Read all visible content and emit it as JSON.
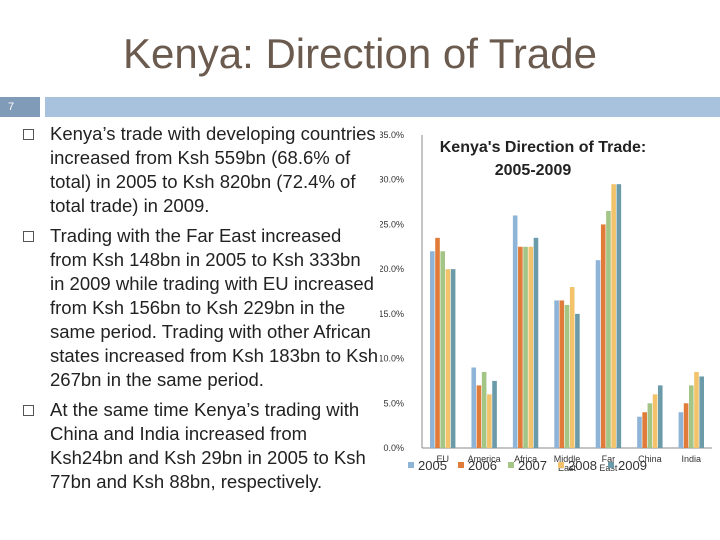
{
  "slide": {
    "title": "Kenya: Direction of Trade",
    "number": "7",
    "bullets": [
      "Kenya’s trade with developing countries increased from Ksh 559bn (68.6% of total) in 2005 to Ksh 820bn (72.4% of total trade) in 2009.",
      "Trading with the Far East increased from Ksh 148bn in 2005 to Ksh 333bn in 2009 while trading with EU increased from Ksh 156bn to Ksh 229bn in the same period. Trading with other African states increased from Ksh 183bn to Ksh 267bn in the same period.",
      "At the same time Kenya’s trading with China and India increased from Ksh24bn and Ksh 29bn in 2005 to Ksh 77bn and Ksh 88bn, respectively."
    ]
  },
  "chart_data": {
    "type": "bar",
    "title_lines": [
      "Kenya's Direction of Trade:",
      "2005-2009"
    ],
    "categories": [
      "EU",
      "America",
      "Africa",
      "Middle East",
      "Far East",
      "China",
      "India"
    ],
    "category_label_lines": [
      [
        "EU"
      ],
      [
        "America"
      ],
      [
        "Africa"
      ],
      [
        "Middle",
        "East"
      ],
      [
        "Far",
        "East"
      ],
      [
        "China"
      ],
      [
        "India"
      ]
    ],
    "yticks": [
      "0.0%",
      "5.0%",
      "10.0%",
      "15.0%",
      "20.0%",
      "25.0%",
      "30.0%",
      "35.0%"
    ],
    "ylim": [
      0,
      35
    ],
    "series": [
      {
        "name": "2005",
        "color": "#8eb4d8",
        "values": [
          22.0,
          9.0,
          26.0,
          16.5,
          21.0,
          3.5,
          4.0
        ]
      },
      {
        "name": "2006",
        "color": "#e07b39",
        "values": [
          23.5,
          7.0,
          22.5,
          16.5,
          25.0,
          4.0,
          5.0
        ]
      },
      {
        "name": "2007",
        "color": "#a3c585",
        "values": [
          22.0,
          8.5,
          22.5,
          16.0,
          26.5,
          5.0,
          7.0
        ]
      },
      {
        "name": "2008",
        "color": "#f2c36b",
        "values": [
          20.0,
          6.0,
          22.5,
          18.0,
          29.5,
          6.0,
          8.5
        ]
      },
      {
        "name": "2009",
        "color": "#6b9aa8",
        "values": [
          20.0,
          7.5,
          23.5,
          15.0,
          29.5,
          7.0,
          8.0
        ]
      }
    ]
  }
}
